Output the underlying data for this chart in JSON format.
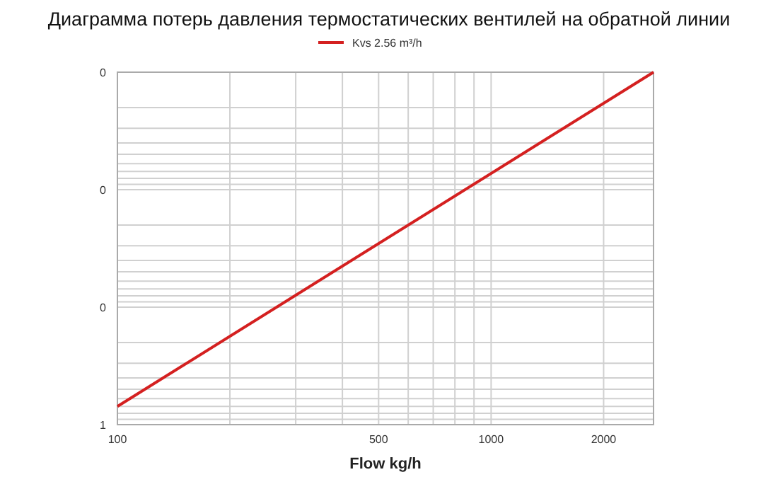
{
  "chart_data": {
    "type": "line",
    "title": "Диаграмма потерь давления термостатических вентилей на обратной линии",
    "xlabel": "Flow kg/h",
    "series": [
      {
        "name": "Kvs 2.56 m³/h",
        "color": "#d42020",
        "x": [
          100,
          2720
        ],
        "values": [
          0.7,
          0.001
        ]
      }
    ],
    "log": "xy",
    "xlim": [
      100,
      2720
    ],
    "ylim": [
      1,
      0.001
    ],
    "xticks": [
      100,
      {
        "value": 200,
        "label": null
      },
      {
        "value": 300,
        "label": null
      },
      {
        "value": 400,
        "label": null
      },
      500,
      {
        "value": 600,
        "label": null
      },
      {
        "value": 700,
        "label": null
      },
      {
        "value": 800,
        "label": null
      },
      {
        "value": 900,
        "label": null
      },
      1000,
      2000
    ],
    "yticks": [
      1,
      {
        "value": 0.9,
        "label": null
      },
      {
        "value": 0.8,
        "label": null
      },
      {
        "value": 0.7,
        "label": null
      },
      {
        "value": 0.6,
        "label": null
      },
      {
        "value": 0.5,
        "label": null
      },
      {
        "value": 0.4,
        "label": null
      },
      {
        "value": 0.3,
        "label": null
      },
      {
        "value": 0.2,
        "label": null
      },
      {
        "value": 0.1,
        "label": "0"
      },
      {
        "value": 0.09,
        "label": null
      },
      {
        "value": 0.08,
        "label": null
      },
      {
        "value": 0.07,
        "label": null
      },
      {
        "value": 0.06,
        "label": null
      },
      {
        "value": 0.05,
        "label": null
      },
      {
        "value": 0.04,
        "label": null
      },
      {
        "value": 0.03,
        "label": null
      },
      {
        "value": 0.02,
        "label": null
      },
      {
        "value": 0.01,
        "label": "0"
      },
      {
        "value": 0.009,
        "label": null
      },
      {
        "value": 0.008,
        "label": null
      },
      {
        "value": 0.007,
        "label": null
      },
      {
        "value": 0.006,
        "label": null
      },
      {
        "value": 0.005,
        "label": null
      },
      {
        "value": 0.004,
        "label": null
      },
      {
        "value": 0.003,
        "label": null
      },
      {
        "value": 0.002,
        "label": null
      },
      {
        "value": 0.001,
        "label": "0"
      }
    ],
    "grid": true,
    "legend": "top",
    "marker": "none",
    "line_style": "solid"
  }
}
